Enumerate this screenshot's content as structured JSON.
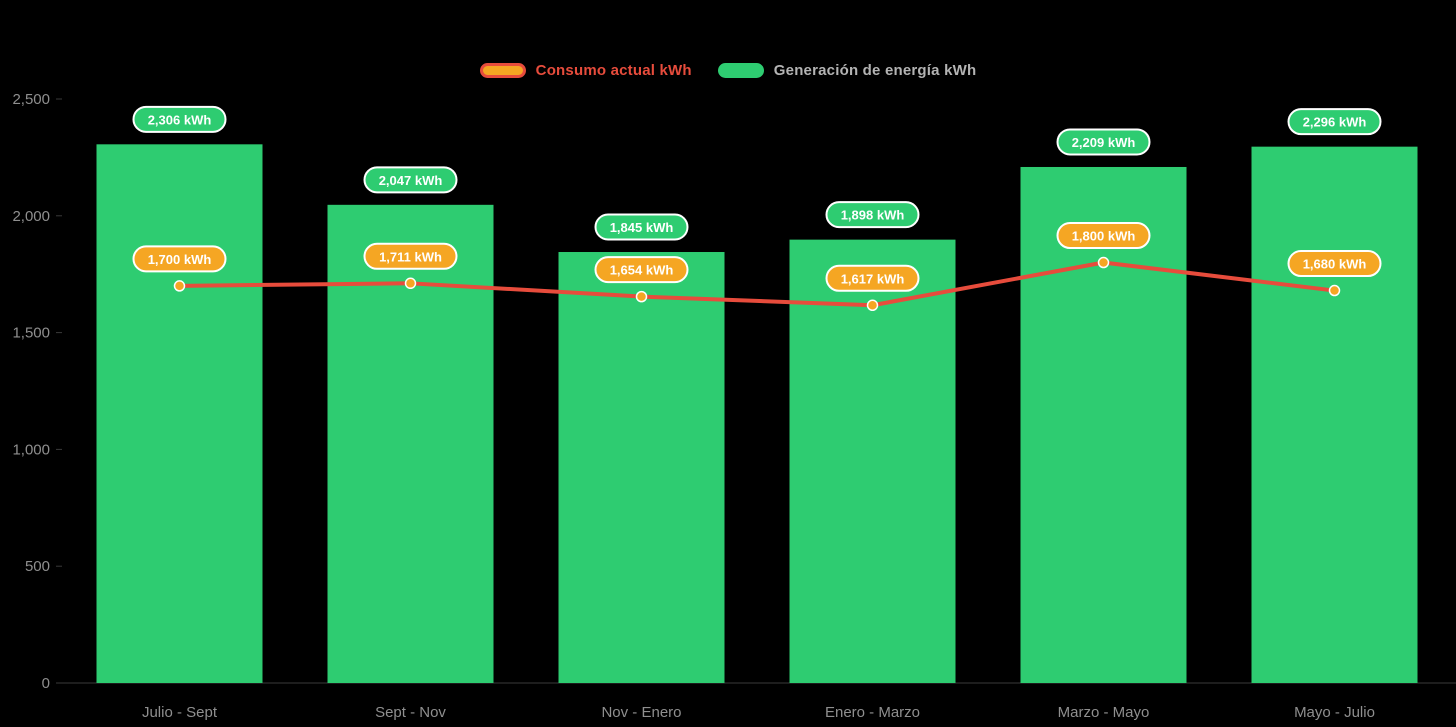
{
  "chart_data": {
    "type": "bar+line",
    "title": "",
    "categories": [
      "Julio - Sept",
      "Sept - Nov",
      "Nov - Enero",
      "Enero - Marzo",
      "Marzo - Mayo",
      "Mayo - Julio"
    ],
    "series": [
      {
        "name": "Consumo actual kWh",
        "type": "line",
        "values": [
          1700,
          1711,
          1654,
          1617,
          1800,
          1680
        ],
        "color": "#e74c3c",
        "marker_color": "#f5a623",
        "label_bg": "#f5a623",
        "label_border": "#ffffff",
        "label_text_color": "#ffffff"
      },
      {
        "name": "Generación de energía kWh",
        "type": "bar",
        "values": [
          2306,
          2047,
          1845,
          1898,
          2209,
          2296
        ],
        "color": "#2ecc71",
        "label_bg": "#2ecc71",
        "label_border": "#ffffff",
        "label_text_color": "#ffffff"
      }
    ],
    "value_labels": {
      "line": [
        "1,700 kWh",
        "1,711 kWh",
        "1,654 kWh",
        "1,617 kWh",
        "1,800 kWh",
        "1,680 kWh"
      ],
      "bar": [
        "2,306 kWh",
        "2,047 kWh",
        "1,845 kWh",
        "1,898 kWh",
        "2,209 kWh",
        "2,296 kWh"
      ]
    },
    "y_ticks": [
      "0",
      "500",
      "1,000",
      "1,500",
      "2,000",
      "2,500"
    ],
    "ylim": [
      0,
      2500
    ],
    "grid": false,
    "legend_position": "top",
    "axis_label_color": "#8f8f8f",
    "axis_line_color": "#3a3a3a",
    "legend_text_color": "#b3b3b3",
    "background": "#000000"
  }
}
